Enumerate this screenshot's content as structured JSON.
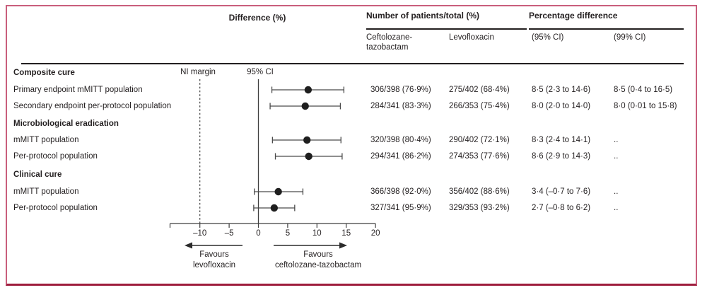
{
  "colors": {
    "frame_border": "#c95e7c",
    "bottom_rule": "#9e1c3c",
    "text": "#231f20",
    "line": "#3f3f3f",
    "marker": "#1e1e1e"
  },
  "header": {
    "difference": "Difference (%)",
    "patients_group": "Number of patients/total (%)",
    "ceftolozane_line1": "Ceftolozane-",
    "ceftolozane_line2": "tazobactam",
    "levofloxacin": "Levofloxacin",
    "percentage_group": "Percentage difference",
    "ci95": "(95% CI)",
    "ci99": "(99% CI)"
  },
  "plot": {
    "ni_margin_label": "NI margin",
    "ci95_label": "95% CI",
    "favours_left_line1": "Favours",
    "favours_left_line2": "levofloxacin",
    "favours_right_line1": "Favours",
    "favours_right_line2": "ceftolozane-tazobactam"
  },
  "rows": [
    {
      "label": "Composite cure",
      "bold": true
    },
    {
      "label": "Primary endpoint mMITT population",
      "bold": false,
      "cells": [
        "306/398 (76·9%)",
        "275/402 (68·4%)",
        "8·5 (2·3 to 14·6)",
        "8·5 (0·4 to 16·5)"
      ],
      "est": 8.5,
      "lo": 2.3,
      "hi": 14.6
    },
    {
      "label": "Secondary endpoint per-protocol population",
      "bold": false,
      "cells": [
        "284/341 (83·3%)",
        "266/353 (75·4%)",
        "8·0 (2·0 to 14·0)",
        "8·0 (0·01 to 15·8)"
      ],
      "est": 8.0,
      "lo": 2.0,
      "hi": 14.0
    },
    {
      "label": "Microbiological eradication",
      "bold": true
    },
    {
      "label": "mMITT population",
      "bold": false,
      "cells": [
        "320/398 (80·4%)",
        "290/402 (72·1%)",
        "8·3 (2·4 to 14·1)",
        ".."
      ],
      "est": 8.3,
      "lo": 2.4,
      "hi": 14.1
    },
    {
      "label": "Per-protocol population",
      "bold": false,
      "cells": [
        "294/341 (86·2%)",
        "274/353 (77·6%)",
        "8·6 (2·9 to 14·3)",
        ".."
      ],
      "est": 8.6,
      "lo": 2.9,
      "hi": 14.3
    },
    {
      "label": "Clinical cure",
      "bold": true
    },
    {
      "label": "mMITT population",
      "bold": false,
      "cells": [
        "366/398 (92·0%)",
        "356/402 (88·6%)",
        "3·4 (–0·7 to 7·6)",
        ".."
      ],
      "est": 3.4,
      "lo": -0.7,
      "hi": 7.6
    },
    {
      "label": "Per-protocol population",
      "bold": false,
      "cells": [
        "327/341 (95·9%)",
        "329/353 (93·2%)",
        "2·7 (–0·8 to 6·2)",
        ".."
      ],
      "est": 2.7,
      "lo": -0.8,
      "hi": 6.2
    }
  ],
  "axis": {
    "ticks": [
      -10,
      -5,
      0,
      5,
      10,
      15,
      20
    ],
    "tick_labels": [
      "–10",
      "–5",
      "0",
      "5",
      "10",
      "15",
      "20"
    ]
  },
  "chart_data": {
    "type": "scatter",
    "subtype": "forest-plot",
    "title": "Difference (%)",
    "xlabel": "Difference (%)",
    "xlim": [
      -15,
      20
    ],
    "x_ticks": [
      -10,
      -5,
      0,
      5,
      10,
      15,
      20
    ],
    "ni_margin_x": -10,
    "reference_line_x": 0,
    "grid": false,
    "legend_position": "none",
    "groups": [
      "Composite cure",
      "Microbiological eradication",
      "Clinical cure"
    ],
    "points": [
      {
        "group": "Composite cure",
        "label": "Primary endpoint mMITT population",
        "ceftolozane_tazobactam": "306/398 (76·9%)",
        "levofloxacin": "275/402 (68·4%)",
        "estimate": 8.5,
        "ci95": [
          2.3,
          14.6
        ],
        "ci99": [
          0.4,
          16.5
        ]
      },
      {
        "group": "Composite cure",
        "label": "Secondary endpoint per-protocol population",
        "ceftolozane_tazobactam": "284/341 (83·3%)",
        "levofloxacin": "266/353 (75·4%)",
        "estimate": 8.0,
        "ci95": [
          2.0,
          14.0
        ],
        "ci99": [
          0.01,
          15.8
        ]
      },
      {
        "group": "Microbiological eradication",
        "label": "mMITT population",
        "ceftolozane_tazobactam": "320/398 (80·4%)",
        "levofloxacin": "290/402 (72·1%)",
        "estimate": 8.3,
        "ci95": [
          2.4,
          14.1
        ],
        "ci99": null
      },
      {
        "group": "Microbiological eradication",
        "label": "Per-protocol population",
        "ceftolozane_tazobactam": "294/341 (86·2%)",
        "levofloxacin": "274/353 (77·6%)",
        "estimate": 8.6,
        "ci95": [
          2.9,
          14.3
        ],
        "ci99": null
      },
      {
        "group": "Clinical cure",
        "label": "mMITT population",
        "ceftolozane_tazobactam": "366/398 (92·0%)",
        "levofloxacin": "356/402 (88·6%)",
        "estimate": 3.4,
        "ci95": [
          -0.7,
          7.6
        ],
        "ci99": null
      },
      {
        "group": "Clinical cure",
        "label": "Per-protocol population",
        "ceftolozane_tazobactam": "327/341 (95·9%)",
        "levofloxacin": "329/353 (93·2%)",
        "estimate": 2.7,
        "ci95": [
          -0.8,
          6.2
        ],
        "ci99": null
      }
    ],
    "annotations": [
      "NI margin",
      "95% CI",
      "Favours levofloxacin",
      "Favours ceftolozane-tazobactam"
    ]
  }
}
